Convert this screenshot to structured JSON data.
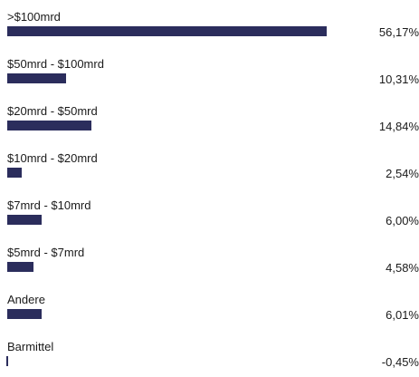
{
  "chart_data": {
    "type": "bar",
    "orientation": "horizontal",
    "categories": [
      ">$100mrd",
      "$50mrd - $100mrd",
      "$20mrd - $50mrd",
      "$10mrd - $20mrd",
      "$7mrd - $10mrd",
      "$5mrd - $7mrd",
      "Andere",
      "Barmittel"
    ],
    "values": [
      56.17,
      10.31,
      14.84,
      2.54,
      6.0,
      4.58,
      6.01,
      -0.45
    ],
    "value_labels": [
      "56,17%",
      "10,31%",
      "14,84%",
      "2,54%",
      "6,00%",
      "4,58%",
      "6,01%",
      "-0,45%"
    ],
    "title": "",
    "xlabel": "",
    "ylabel": "",
    "grid": false,
    "legend": "none",
    "bar_color": "#2b2d5c"
  }
}
